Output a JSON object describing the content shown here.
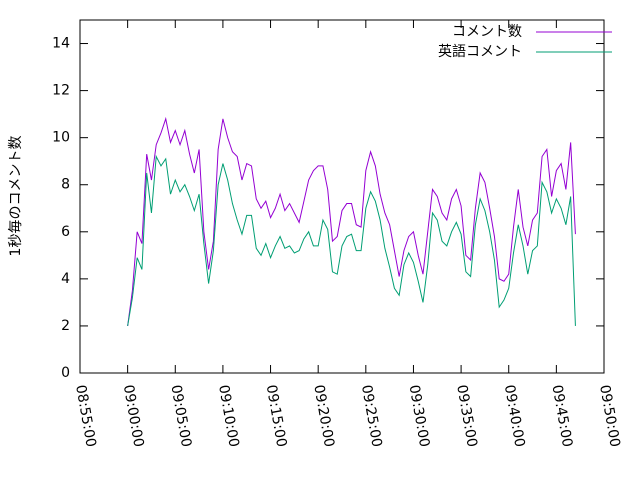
{
  "chart_data": {
    "type": "line",
    "ylabel": "1秒毎のコメント数",
    "x": [
      "09:00:00",
      "09:00:30",
      "09:01:00",
      "09:01:30",
      "09:02:00",
      "09:02:30",
      "09:03:00",
      "09:03:30",
      "09:04:00",
      "09:04:30",
      "09:05:00",
      "09:05:30",
      "09:06:00",
      "09:06:30",
      "09:07:00",
      "09:07:30",
      "09:08:00",
      "09:08:30",
      "09:09:00",
      "09:09:30",
      "09:10:00",
      "09:10:30",
      "09:11:00",
      "09:11:30",
      "09:12:00",
      "09:12:30",
      "09:13:00",
      "09:13:30",
      "09:14:00",
      "09:14:30",
      "09:15:00",
      "09:15:30",
      "09:16:00",
      "09:16:30",
      "09:17:00",
      "09:17:30",
      "09:18:00",
      "09:18:30",
      "09:19:00",
      "09:19:30",
      "09:20:00",
      "09:20:30",
      "09:21:00",
      "09:21:30",
      "09:22:00",
      "09:22:30",
      "09:23:00",
      "09:23:30",
      "09:24:00",
      "09:24:30",
      "09:25:00",
      "09:25:30",
      "09:26:00",
      "09:26:30",
      "09:27:00",
      "09:27:30",
      "09:28:00",
      "09:28:30",
      "09:29:00",
      "09:29:30",
      "09:30:00",
      "09:30:30",
      "09:31:00",
      "09:31:30",
      "09:32:00",
      "09:32:30",
      "09:33:00",
      "09:33:30",
      "09:34:00",
      "09:34:30",
      "09:35:00",
      "09:35:30",
      "09:36:00",
      "09:36:30",
      "09:37:00",
      "09:37:30",
      "09:38:00",
      "09:38:30",
      "09:39:00",
      "09:39:30",
      "09:40:00",
      "09:40:30",
      "09:41:00",
      "09:41:30",
      "09:42:00",
      "09:42:30",
      "09:43:00",
      "09:43:30",
      "09:44:00",
      "09:44:30",
      "09:45:00",
      "09:45:30",
      "09:46:00",
      "09:46:30",
      "09:47:00"
    ],
    "series": [
      {
        "name": "コメント数",
        "color": "#9400d3",
        "values": [
          2.0,
          3.5,
          6,
          5.5,
          9.3,
          8.2,
          9.7,
          10.2,
          10.8,
          9.8,
          10.3,
          9.7,
          10.3,
          9.3,
          8.5,
          9.5,
          6,
          4.4,
          5.6,
          9.5,
          10.8,
          10,
          9.4,
          9.2,
          8.2,
          8.9,
          8.8,
          7.4,
          7,
          7.3,
          6.6,
          7,
          7.6,
          6.9,
          7.2,
          6.8,
          6.4,
          7.3,
          8.2,
          8.6,
          8.8,
          8.8,
          7.8,
          5.6,
          5.8,
          6.9,
          7.2,
          7.2,
          6.3,
          6.2,
          8.6,
          9.4,
          8.8,
          7.6,
          6.8,
          6.3,
          5.2,
          4.1,
          5.2,
          5.8,
          6.0,
          5.0,
          4.2,
          6.0,
          7.8,
          7.5,
          6.8,
          6.5,
          7.4,
          7.8,
          7.1,
          5.0,
          4.8,
          7.0,
          8.5,
          8.1,
          7.0,
          5.8,
          4.0,
          3.9,
          4.2,
          6.2,
          7.8,
          6.2,
          5.4,
          6.5,
          6.8,
          9.2,
          9.5,
          7.5,
          8.6,
          8.9,
          7.8,
          9.8,
          5.9
        ]
      },
      {
        "name": "英語コメント",
        "color": "#009e73",
        "values": [
          2.0,
          3.2,
          4.9,
          4.4,
          8.5,
          6.8,
          9.2,
          8.8,
          9.1,
          7.6,
          8.2,
          7.7,
          8.0,
          7.5,
          6.9,
          7.6,
          5.5,
          3.8,
          5.2,
          8.0,
          8.9,
          8.2,
          7.2,
          6.5,
          5.9,
          6.7,
          6.7,
          5.3,
          5.0,
          5.5,
          4.9,
          5.4,
          5.8,
          5.3,
          5.4,
          5.1,
          5.2,
          5.7,
          6.0,
          5.4,
          5.4,
          6.5,
          6.1,
          4.3,
          4.2,
          5.4,
          5.8,
          5.9,
          5.2,
          5.2,
          7.0,
          7.7,
          7.3,
          6.5,
          5.3,
          4.5,
          3.6,
          3.3,
          4.6,
          5.1,
          4.7,
          3.9,
          3.0,
          4.6,
          6.8,
          6.5,
          5.6,
          5.4,
          6.0,
          6.4,
          5.9,
          4.3,
          4.1,
          6.3,
          7.4,
          6.9,
          6.0,
          4.8,
          2.8,
          3.1,
          3.6,
          5.1,
          6.3,
          5.4,
          4.2,
          5.2,
          5.4,
          8.1,
          7.7,
          6.8,
          7.4,
          7.0,
          6.3,
          7.5,
          2.0
        ]
      }
    ],
    "xlim": [
      "08:55:00",
      "09:50:00"
    ],
    "xticks": [
      "08:55:00",
      "09:00:00",
      "09:05:00",
      "09:10:00",
      "09:15:00",
      "09:20:00",
      "09:25:00",
      "09:30:00",
      "09:35:00",
      "09:40:00",
      "09:45:00",
      "09:50:00"
    ],
    "ylim": [
      0,
      15
    ],
    "yticks": [
      0,
      2,
      4,
      6,
      8,
      10,
      12,
      14
    ],
    "legend": "upper right",
    "grid": false
  }
}
